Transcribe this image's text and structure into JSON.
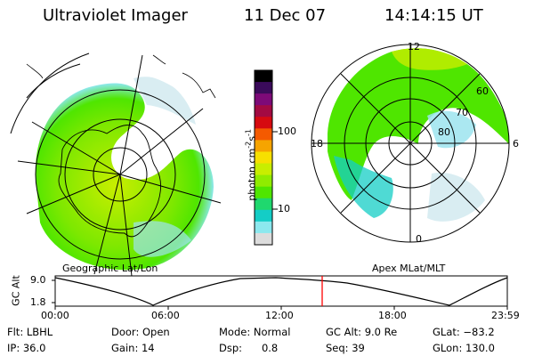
{
  "header": {
    "instrument": "Ultraviolet Imager",
    "date": "11 Dec 07",
    "time": "14:14:15 UT"
  },
  "left_panel": {
    "caption": "Geographic Lat/Lon"
  },
  "right_panel": {
    "caption": "Apex MLat/MLT",
    "mlt_labels": [
      "12",
      "18",
      "6",
      "0"
    ],
    "lat_labels": [
      "60",
      "70",
      "80"
    ]
  },
  "colorbar": {
    "unit_label": "photon cm",
    "unit_exp1": "-2",
    "unit_mid": "s",
    "unit_exp2": "-1",
    "tick_labels": [
      "100",
      "10"
    ],
    "colors": [
      "#000000",
      "#3a0b5a",
      "#7d0a78",
      "#a30a42",
      "#d60a10",
      "#f45a00",
      "#f6a400",
      "#f7e000",
      "#c8ee00",
      "#90ec00",
      "#4fe600",
      "#1fd86e",
      "#14cdc6",
      "#8ce8ee",
      "#dcdcdc"
    ]
  },
  "timeline": {
    "y_label": "GC Alt",
    "y_top": "9.0",
    "y_bottom": "1.8",
    "x_ticks": [
      "00:00",
      "06:00",
      "12:00",
      "18:00",
      "23:59"
    ],
    "marker_color": "#ff0000"
  },
  "info": {
    "row1": [
      "Flt: LBHL",
      "Door: Open",
      "Mode: Normal",
      "GC Alt: 9.0 Re",
      "GLat: −83.2"
    ],
    "row2": [
      "IP: 36.0",
      "Gain: 14",
      "Dsp:      0.8",
      "Seq: 39",
      "GLon: 130.0"
    ]
  }
}
